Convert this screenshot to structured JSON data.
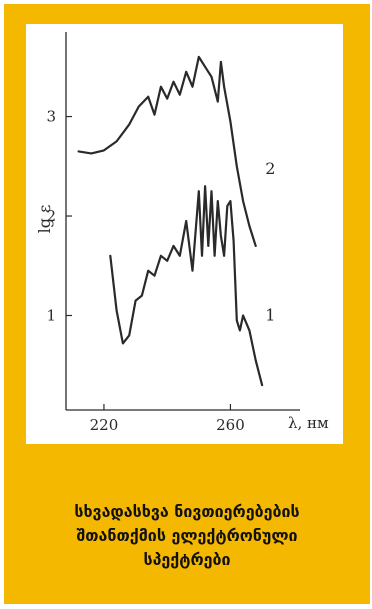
{
  "caption": {
    "line1": "სხვადასხვა ნივთიერებების",
    "line2": "შთანთქმის ელექტრონული",
    "line3": "სპექტრები"
  },
  "colors": {
    "frame": "#f5b800",
    "panel": "#ffffff",
    "ink": "#2a2a2a"
  },
  "chart_data": {
    "type": "line",
    "title": "",
    "xlabel": "λ, нм",
    "ylabel": "lg ε",
    "xlim": [
      208,
      282
    ],
    "ylim": [
      0.05,
      3.85
    ],
    "xticks": [
      220,
      260
    ],
    "yticks": [
      1,
      2,
      3
    ],
    "grid": false,
    "series": [
      {
        "name": "1",
        "x": [
          222,
          224,
          226,
          228,
          230,
          232,
          234,
          236,
          238,
          240,
          242,
          244,
          246,
          248,
          250,
          251,
          252,
          253,
          254,
          255,
          256,
          257,
          258,
          259,
          260,
          261,
          262,
          263,
          264,
          266,
          268,
          270
        ],
        "y": [
          1.6,
          1.05,
          0.72,
          0.8,
          1.15,
          1.2,
          1.45,
          1.4,
          1.6,
          1.55,
          1.7,
          1.6,
          1.95,
          1.45,
          2.25,
          1.6,
          2.3,
          1.7,
          2.25,
          1.6,
          2.15,
          1.8,
          1.6,
          2.1,
          2.15,
          1.75,
          0.95,
          0.85,
          1.0,
          0.85,
          0.55,
          0.3
        ]
      },
      {
        "name": "2",
        "x": [
          212,
          216,
          220,
          224,
          228,
          231,
          234,
          236,
          238,
          240,
          242,
          244,
          246,
          248,
          250,
          252,
          254,
          256,
          257,
          258,
          260,
          262,
          264,
          266,
          268
        ],
        "y": [
          2.65,
          2.63,
          2.66,
          2.75,
          2.92,
          3.1,
          3.2,
          3.02,
          3.3,
          3.18,
          3.35,
          3.22,
          3.45,
          3.3,
          3.6,
          3.5,
          3.4,
          3.15,
          3.55,
          3.3,
          2.95,
          2.5,
          2.15,
          1.9,
          1.7
        ]
      }
    ],
    "annotations": [
      {
        "text": "1",
        "x": 271,
        "y": 0.95
      },
      {
        "text": "2",
        "x": 271,
        "y": 2.42
      }
    ]
  }
}
